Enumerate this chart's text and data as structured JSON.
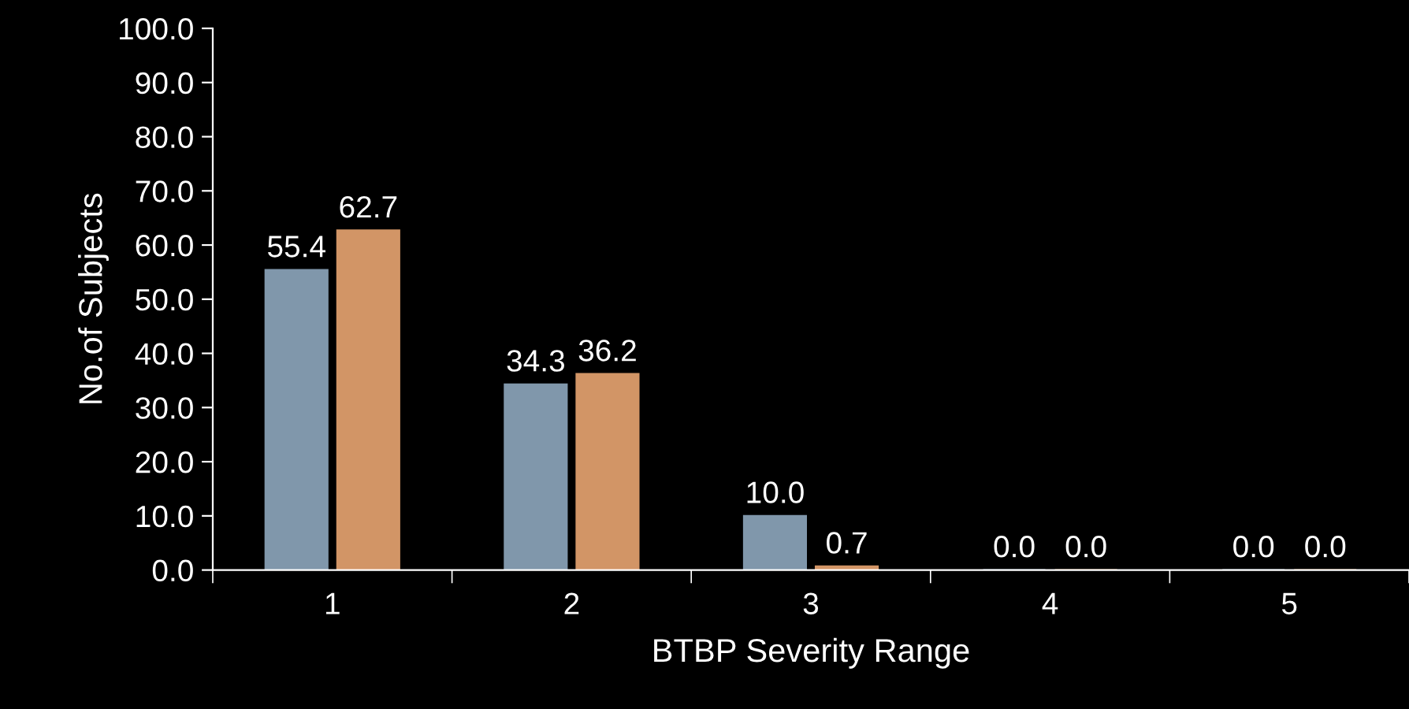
{
  "chart_data": {
    "type": "bar",
    "xlabel": "BTBP Severity Range",
    "ylabel": "No.of Subjects",
    "categories": [
      "1",
      "2",
      "3",
      "4",
      "5"
    ],
    "series": [
      {
        "color": "#8097ab",
        "values": [
          55.4,
          34.3,
          10.0,
          0.0,
          0.0
        ],
        "value_labels": [
          "55.4",
          "34.3",
          "10.0",
          "0.0",
          "0.0"
        ]
      },
      {
        "color": "#d29566",
        "values": [
          62.7,
          36.2,
          0.7,
          0.0,
          0.0
        ],
        "value_labels": [
          "62.7",
          "36.2",
          "0.7",
          "0.0",
          "0.0"
        ]
      }
    ],
    "ylim": [
      0,
      100
    ],
    "yticks": [
      {
        "value": 0,
        "label": "0.0"
      },
      {
        "value": 10,
        "label": "10.0"
      },
      {
        "value": 20,
        "label": "20.0"
      },
      {
        "value": 30,
        "label": "30.0"
      },
      {
        "value": 40,
        "label": "40.0"
      },
      {
        "value": 50,
        "label": "50.0"
      },
      {
        "value": 60,
        "label": "60.0"
      },
      {
        "value": 70,
        "label": "70.0"
      },
      {
        "value": 80,
        "label": "80.0"
      },
      {
        "value": 90,
        "label": "90.0"
      },
      {
        "value": 100,
        "label": "100.0"
      }
    ],
    "grid": false
  }
}
